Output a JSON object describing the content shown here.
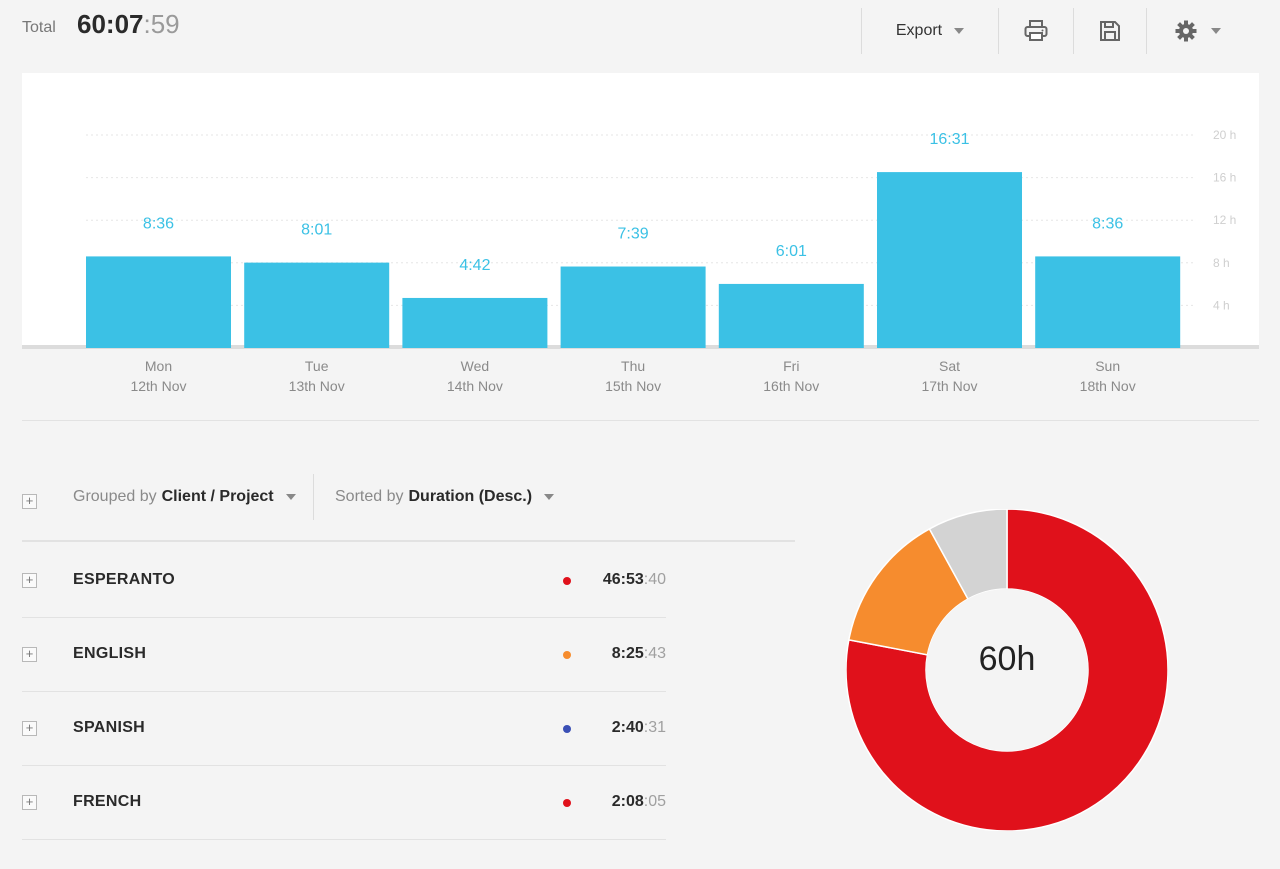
{
  "header": {
    "total_label": "Total",
    "total_hm": "60:07",
    "total_s": ":59",
    "export_label": "Export",
    "print_icon": "printer-icon",
    "save_icon": "floppy-disk-icon",
    "settings_icon": "gear-icon"
  },
  "chart_data": {
    "type": "bar",
    "categories": [
      "Mon",
      "Tue",
      "Wed",
      "Thu",
      "Fri",
      "Sat",
      "Sun"
    ],
    "dates": [
      "12th Nov",
      "13th Nov",
      "14th Nov",
      "15th Nov",
      "16th Nov",
      "17th Nov",
      "18th Nov"
    ],
    "values": [
      8.6,
      8.0167,
      4.7,
      7.65,
      6.0167,
      16.5167,
      8.6
    ],
    "value_labels": [
      "8:36",
      "8:01",
      "4:42",
      "7:39",
      "6:01",
      "16:31",
      "8:36"
    ],
    "y_ticks": [
      "4 h",
      "8 h",
      "12 h",
      "16 h",
      "20 h"
    ],
    "y_tick_values": [
      4,
      8,
      12,
      16,
      20
    ],
    "ylim": [
      0,
      20
    ],
    "grid": true,
    "bar_color": "#3bc1e5",
    "label_color": "#3bc1e5"
  },
  "controls": {
    "grouped_prefix": "Grouped by",
    "grouped_value": "Client / Project",
    "sorted_prefix": "Sorted by",
    "sorted_value": "Duration (Desc.)",
    "expand_symbol": "+"
  },
  "rows": [
    {
      "name": "ESPERANTO",
      "hm": "46:53",
      "s": ":40",
      "color": "#e0111b"
    },
    {
      "name": "ENGLISH",
      "hm": "8:25",
      "s": ":43",
      "color": "#f68c2e"
    },
    {
      "name": "SPANISH",
      "hm": "2:40",
      "s": ":31",
      "color": "#3a4fb5"
    },
    {
      "name": "FRENCH",
      "hm": "2:08",
      "s": ":05",
      "color": "#e0111b"
    }
  ],
  "donut": {
    "center_label": "60h",
    "segments": [
      {
        "value": 78.0,
        "color": "#e0111b"
      },
      {
        "value": 14.0,
        "color": "#f68c2e"
      },
      {
        "value": 8.0,
        "color": "#d3d3d3"
      }
    ]
  }
}
